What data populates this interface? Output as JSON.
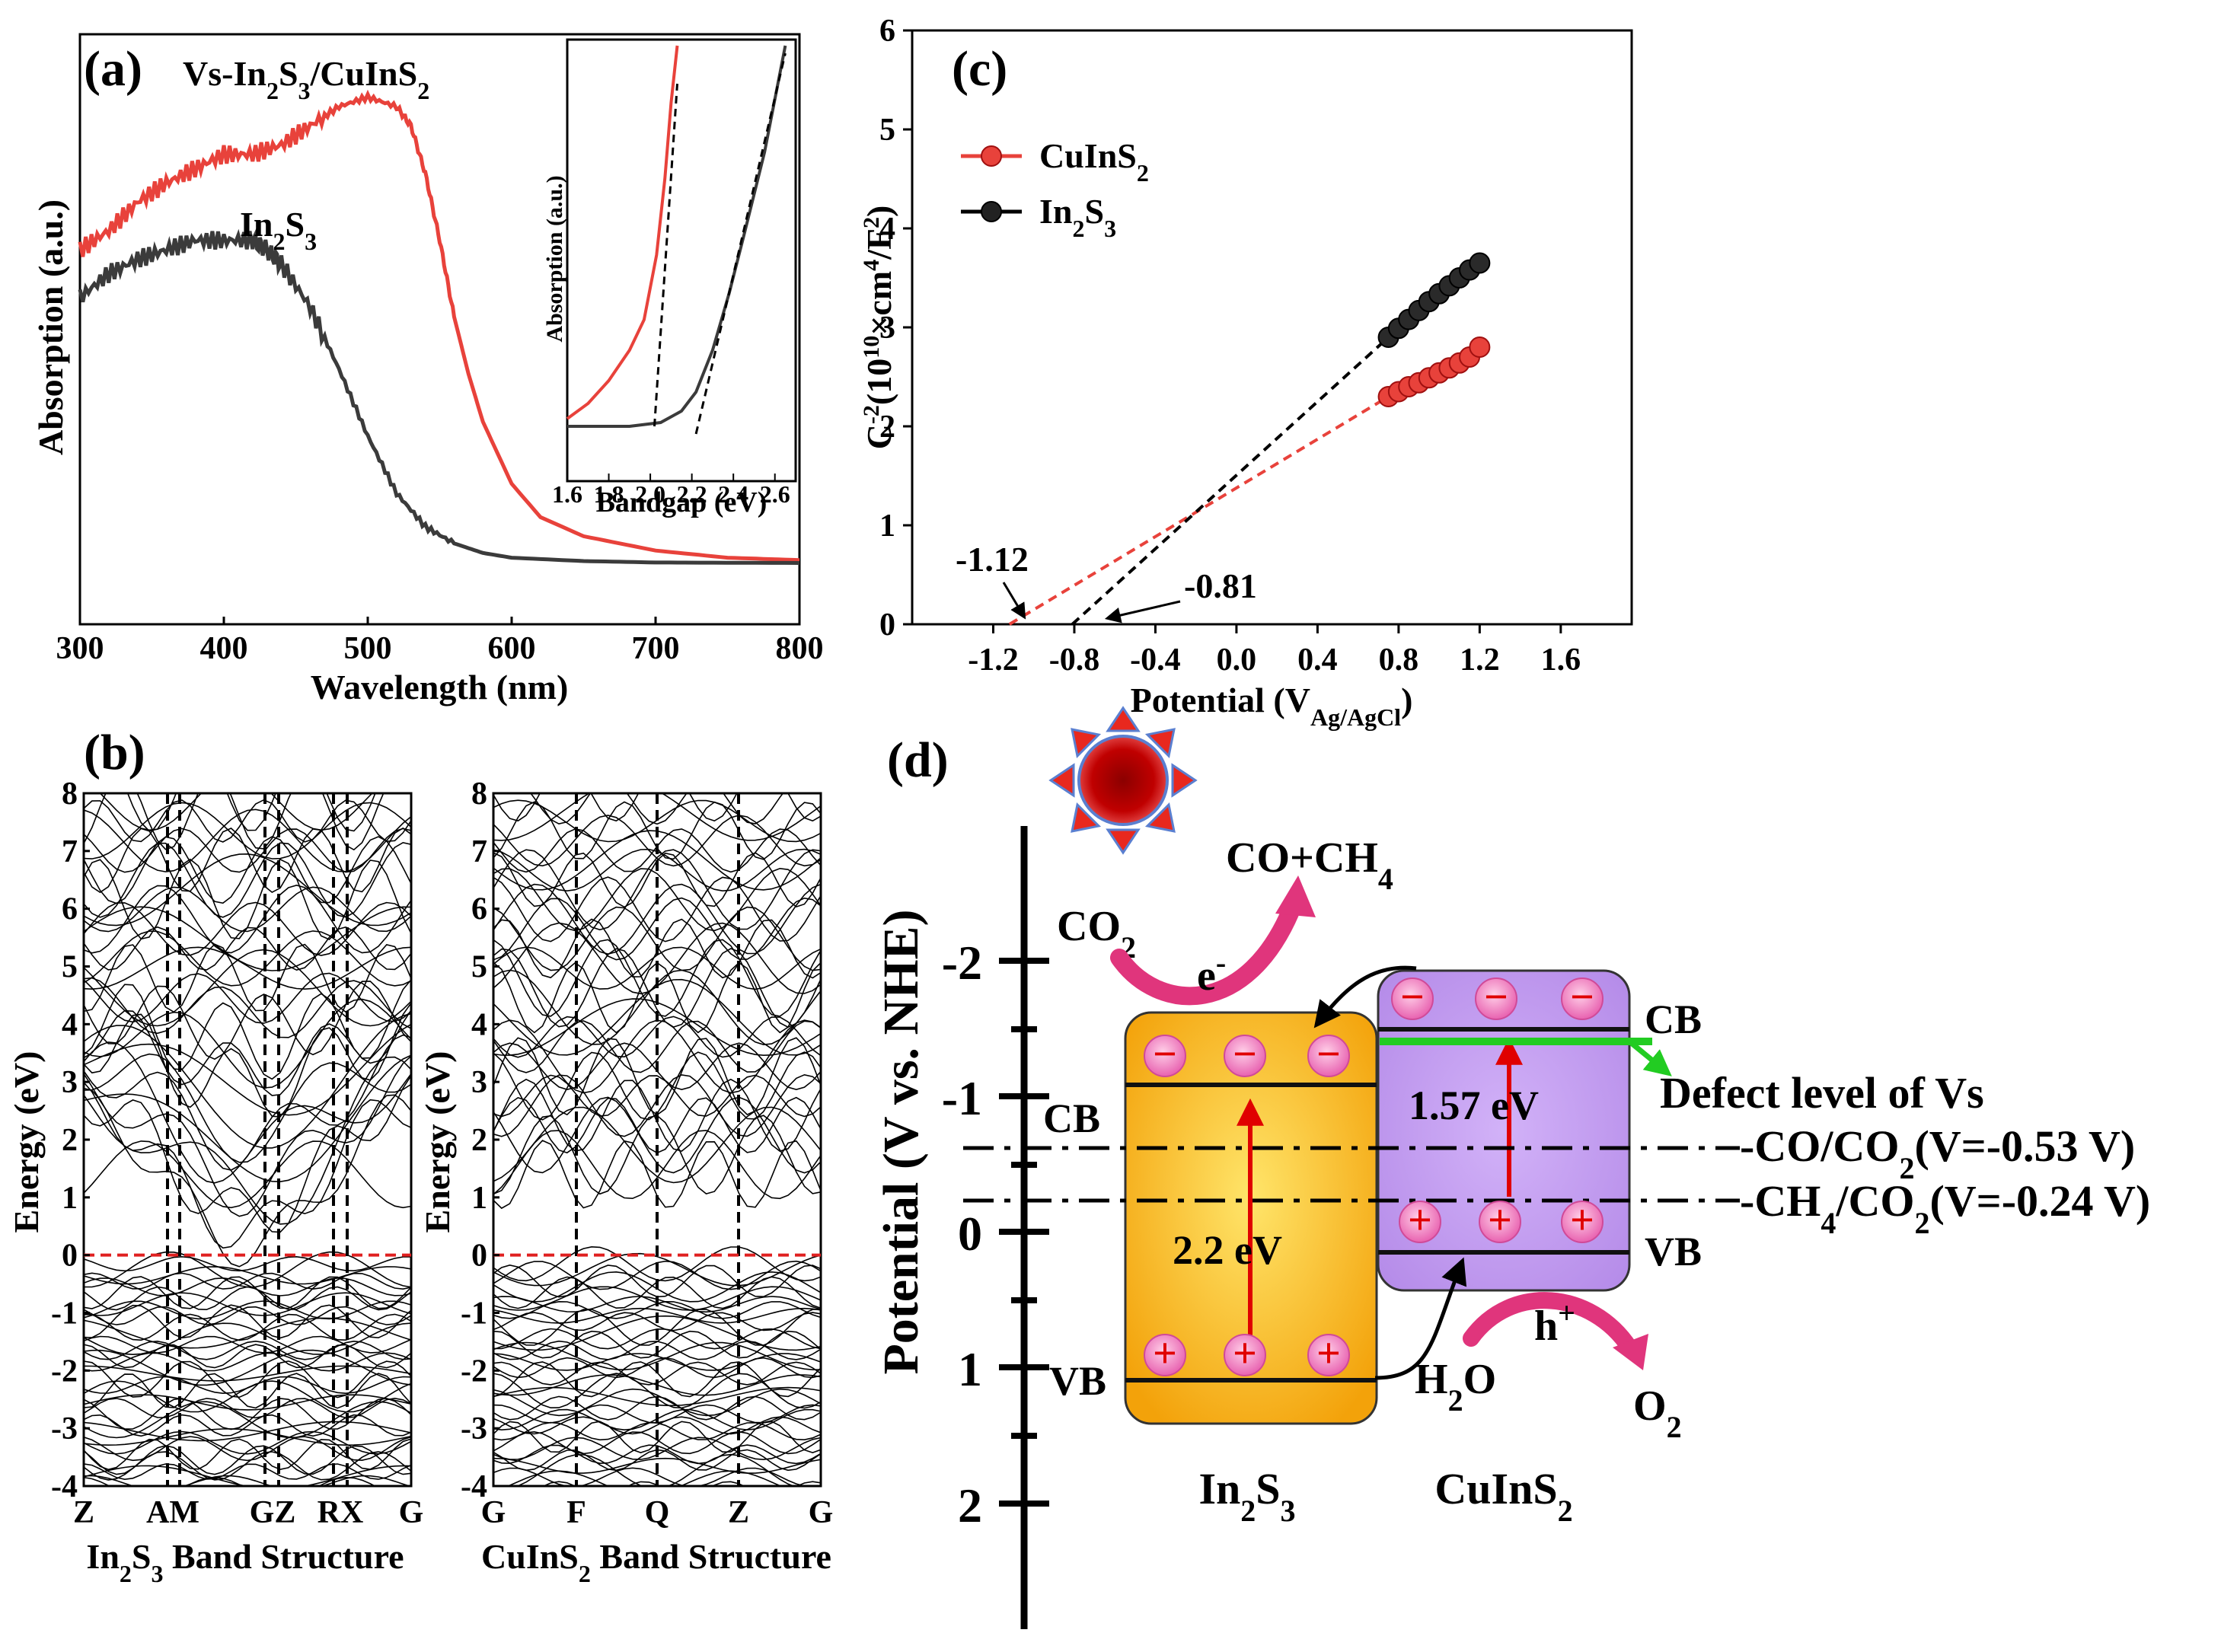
{
  "panels": {
    "a": {
      "label": "(a)"
    },
    "b": {
      "label": "(b)"
    },
    "c": {
      "label": "(c)"
    },
    "d": {
      "label": "(d)"
    }
  },
  "colors": {
    "red": "#e8423b",
    "dark": "#3b3b3b",
    "black": "#000000",
    "cb_box": "#c8a2f2",
    "vb_box": "#f6b714",
    "green": "#22cc22",
    "pink": "#e0357c"
  },
  "chart_data": [
    {
      "type": "line",
      "panel": "a",
      "xlabel": "Wavelength (nm)",
      "ylabel": "Absorption (a.u.)",
      "xlim": [
        300,
        800
      ],
      "ylim": [
        0,
        1
      ],
      "xticks": [
        "300",
        "400",
        "500",
        "600",
        "700",
        "800"
      ],
      "series": [
        {
          "name": "Vs-In2S3/CuInS2",
          "label_base": "Vs-In",
          "label_sub1": "2",
          "label_mid": "S",
          "label_sub2": "3",
          "label_tail": "/CuInS",
          "label_sub3": "2",
          "color": "#e8423b",
          "x": [
            300,
            320,
            340,
            360,
            380,
            400,
            420,
            440,
            460,
            480,
            500,
            520,
            530,
            540,
            550,
            560,
            570,
            580,
            600,
            620,
            650,
            700,
            750,
            800
          ],
          "y": [
            0.66,
            0.7,
            0.76,
            0.8,
            0.83,
            0.86,
            0.86,
            0.88,
            0.92,
            0.96,
            0.98,
            0.96,
            0.92,
            0.82,
            0.68,
            0.52,
            0.4,
            0.3,
            0.17,
            0.1,
            0.06,
            0.03,
            0.015,
            0.01
          ]
        },
        {
          "name": "In2S3",
          "label_base": "In",
          "label_sub1": "2",
          "label_mid": "S",
          "label_sub2": "3",
          "color": "#3b3b3b",
          "x": [
            300,
            320,
            340,
            360,
            380,
            400,
            420,
            430,
            440,
            460,
            480,
            500,
            520,
            540,
            560,
            580,
            600,
            650,
            700,
            800
          ],
          "y": [
            0.56,
            0.61,
            0.64,
            0.66,
            0.68,
            0.68,
            0.68,
            0.66,
            0.63,
            0.54,
            0.41,
            0.27,
            0.15,
            0.08,
            0.045,
            0.025,
            0.015,
            0.008,
            0.005,
            0.004
          ]
        }
      ]
    },
    {
      "type": "line",
      "panel": "a-inset",
      "xlabel": "Bandgap (eV)",
      "ylabel": "Absorption (a.u.)",
      "xlim": [
        1.6,
        2.7
      ],
      "ylim": [
        0,
        1
      ],
      "xticks": [
        "1.6",
        "1.8",
        "2.0",
        "2.2",
        "2.4",
        "2.6"
      ],
      "series": [
        {
          "name": "Vs-In2S3/CuInS2",
          "color": "#e8423b",
          "x": [
            1.6,
            1.7,
            1.8,
            1.9,
            1.97,
            2.03,
            2.07,
            2.1,
            2.13
          ],
          "y": [
            0.02,
            0.06,
            0.12,
            0.2,
            0.28,
            0.45,
            0.65,
            0.85,
            1.0
          ]
        },
        {
          "name": "In2S3",
          "color": "#3b3b3b",
          "x": [
            1.6,
            1.9,
            2.05,
            2.15,
            2.22,
            2.3,
            2.38,
            2.45,
            2.55,
            2.65
          ],
          "y": [
            0.0,
            0.0,
            0.01,
            0.04,
            0.09,
            0.2,
            0.35,
            0.5,
            0.72,
            1.0
          ]
        },
        {
          "name": "extrapolation-1",
          "color": "#000000",
          "dashed": true,
          "x": [
            2.02,
            2.13
          ],
          "y": [
            0.0,
            0.9
          ]
        },
        {
          "name": "extrapolation-2",
          "color": "#000000",
          "dashed": true,
          "x": [
            2.22,
            2.65
          ],
          "y": [
            -0.02,
            0.98
          ]
        }
      ]
    },
    {
      "type": "line",
      "panel": "b-In2S3",
      "ylabel": "Energy (eV)",
      "ylim": [
        -4,
        8
      ],
      "yticks": [
        "-4",
        "-3",
        "-2",
        "-1",
        "0",
        "1",
        "2",
        "3",
        "4",
        "5",
        "6",
        "7",
        "8"
      ],
      "xticks": [
        "Z",
        "AM",
        "GZ",
        "RX",
        "G"
      ],
      "title": "In2S3 Band Structure",
      "title_base": "In",
      "title_sub1": "2",
      "title_mid": "S",
      "title_sub2": "3",
      "title_tail": " Band Structure",
      "fermi_level": 0
    },
    {
      "type": "line",
      "panel": "b-CuInS2",
      "ylabel": "Energy (eV)",
      "ylim": [
        -4,
        8
      ],
      "yticks": [
        "-4",
        "-3",
        "-2",
        "-1",
        "0",
        "1",
        "2",
        "3",
        "4",
        "5",
        "6",
        "7",
        "8"
      ],
      "xticks": [
        "G",
        "F",
        "Q",
        "Z",
        "G"
      ],
      "title": "CuInS2 Band Structure",
      "title_base": "CuInS",
      "title_sub": "2",
      "title_tail": " Band Structure",
      "fermi_level": 0
    },
    {
      "type": "scatter",
      "panel": "c",
      "xlabel": "Potential (VAg/AgCl)",
      "xlabel_base": "Potential (V",
      "xlabel_sub": "Ag/AgCl",
      "xlabel_tail": ")",
      "ylabel": "C-2(10^10×cm4/F2)",
      "xlim": [
        -1.6,
        1.95
      ],
      "ylim": [
        0,
        6
      ],
      "xticks": [
        "-1.2",
        "-0.8",
        "-0.4",
        "0.0",
        "0.4",
        "0.8",
        "1.2",
        "1.6"
      ],
      "yticks": [
        "0",
        "1",
        "2",
        "3",
        "4",
        "5",
        "6"
      ],
      "legend_position": "top-left",
      "series": [
        {
          "name": "CuInS2",
          "label_base": "CuInS",
          "label_sub": "2",
          "color": "#e8423b",
          "x": [
            0.75,
            0.8,
            0.85,
            0.9,
            0.95,
            1.0,
            1.05,
            1.1,
            1.15,
            1.2
          ],
          "y": [
            2.3,
            2.35,
            2.4,
            2.44,
            2.49,
            2.54,
            2.59,
            2.64,
            2.7,
            2.8
          ]
        },
        {
          "name": "In2S3",
          "label_base": "In",
          "label_sub1": "2",
          "label_mid": "S",
          "label_sub2": "3",
          "color": "#000000",
          "x": [
            0.75,
            0.8,
            0.85,
            0.9,
            0.95,
            1.0,
            1.05,
            1.1,
            1.15,
            1.2
          ],
          "y": [
            2.9,
            2.99,
            3.08,
            3.17,
            3.26,
            3.34,
            3.42,
            3.5,
            3.58,
            3.65
          ]
        }
      ],
      "fits": [
        {
          "x": [
            -1.12,
            0.75
          ],
          "y": [
            0,
            2.3
          ],
          "color": "#e8423b"
        },
        {
          "x": [
            -0.81,
            0.75
          ],
          "y": [
            0,
            2.9
          ],
          "color": "#000000"
        }
      ],
      "annotations": [
        "-1.12",
        "-0.81"
      ]
    }
  ],
  "panel_d": {
    "axis_label": "Potential (V vs. NHE)",
    "ticks": [
      "-2",
      "-1",
      "0",
      "1",
      "2"
    ],
    "co2_label": "CO",
    "co2_sub": "2",
    "products_base": "CO+CH",
    "products_sub": "4",
    "electron": "e",
    "electron_sup": "-",
    "hole": "h",
    "hole_sup": "+",
    "water_base": "H",
    "water_sub": "2",
    "water_tail": "O",
    "oxygen_base": "O",
    "oxygen_sub": "2",
    "in2s3_base": "In",
    "in2s3_sub1": "2",
    "in2s3_mid": "S",
    "in2s3_sub2": "3",
    "cuins2_base": "CuInS",
    "cuins2_sub": "2",
    "gap_in2s3": "2.2 eV",
    "gap_cuins2": "1.57 eV",
    "cb_left": "CB",
    "vb_left": "VB",
    "cb_right": "CB",
    "vb_right": "VB",
    "defect": "Defect level of Vs",
    "co_redox_base": "-CO/CO",
    "co_redox_sub": "2",
    "co_redox_tail": "(V=-0.53 V)",
    "ch4_redox_base": "-CH",
    "ch4_redox_sub1": "4",
    "ch4_redox_mid": "/CO",
    "ch4_redox_sub2": "2",
    "ch4_redox_tail": "(V=-0.24 V)",
    "minus": "−",
    "plus": "+"
  }
}
